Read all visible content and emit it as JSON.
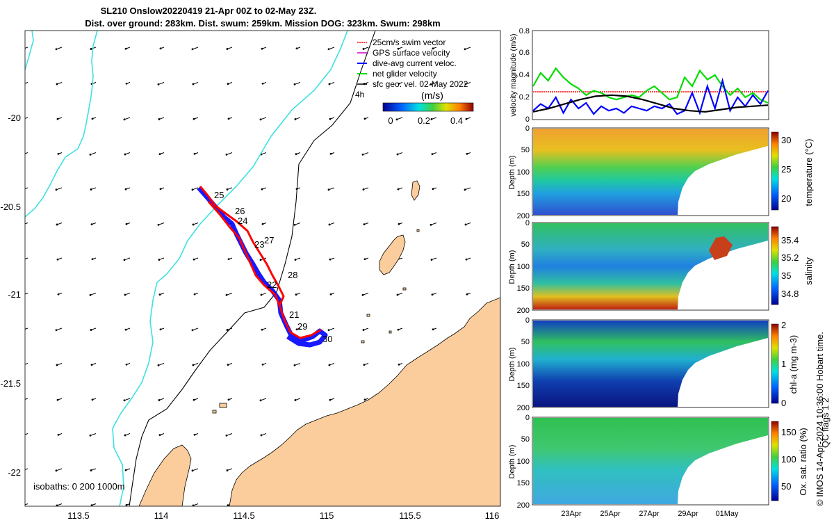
{
  "header": {
    "title_line1": "SL210 Onslow20220419 21-Apr 00Z to 02-May 23Z.",
    "title_line2": "Dist. over ground: 283km. Dist. swum: 259km. Mission DOG: 323km. Swum: 298km"
  },
  "map": {
    "lon_ticks": [
      "113.5",
      "114",
      "114.5",
      "115",
      "115.5",
      "116"
    ],
    "lat_ticks": [
      "-20",
      "-20.5",
      "-21",
      "-21.5",
      "-22"
    ],
    "isobaths_label": "isobaths: 0   200  1000m",
    "legend": [
      {
        "label": "25cm/s swim vector",
        "color": "#ff0000"
      },
      {
        "label": "GPS surface velocity",
        "color": "#cc00cc"
      },
      {
        "label": "dive-avg current veloc.",
        "color": "#0000ff"
      },
      {
        "label": "net glider velocity",
        "color": "#00dd00"
      },
      {
        "label": "sfc geo. vel. 02-May 2022",
        "color": "#000000"
      }
    ],
    "legend_extra": "4h",
    "colorbar_title": "(m/s)",
    "colorbar_ticks": [
      "0",
      "0.2",
      "0.4"
    ],
    "day_labels": [
      "25",
      "26",
      "24",
      "27",
      "23",
      "28",
      "22",
      "21",
      "29",
      "30"
    ],
    "colors": {
      "land": "#fbcd9c",
      "coast_200": "#3ee0e0",
      "isobath_1000": "#000000",
      "track": "#ff0000",
      "current": "#0000ff"
    }
  },
  "chart_data": [
    {
      "type": "line",
      "panel": "velocity",
      "ylabel": "velocity magnitude (m/s)",
      "ylim": [
        0,
        0.8
      ],
      "yticks": [
        "0",
        "0.2",
        "0.4",
        "0.6",
        "0.8"
      ],
      "series": [
        {
          "name": "25cm/s swim vector",
          "color": "#ff0000",
          "values": [
            0.25,
            0.25
          ]
        },
        {
          "name": "net glider velocity",
          "color": "#00dd00",
          "values": [
            0.3,
            0.42,
            0.35,
            0.46,
            0.38,
            0.32,
            0.28,
            0.22,
            0.26,
            0.24,
            0.2,
            0.18,
            0.2,
            0.22,
            0.2,
            0.26,
            0.3,
            0.24,
            0.18,
            0.2,
            0.38,
            0.3,
            0.44,
            0.36,
            0.4,
            0.3,
            0.22,
            0.28,
            0.2,
            0.24,
            0.18,
            0.15
          ]
        },
        {
          "name": "dive-avg current veloc.",
          "color": "#0000ff",
          "values": [
            0.08,
            0.14,
            0.1,
            0.2,
            0.06,
            0.18,
            0.1,
            0.15,
            0.05,
            0.12,
            0.08,
            0.1,
            0.06,
            0.12,
            0.1,
            0.08,
            0.12,
            0.1,
            0.14,
            0.05,
            0.08,
            0.24,
            0.06,
            0.3,
            0.1,
            0.35,
            0.08,
            0.2,
            0.12,
            0.22,
            0.14,
            0.26
          ]
        },
        {
          "name": "sfc geo. vel.",
          "color": "#000000",
          "values": [
            0.07,
            0.1,
            0.14,
            0.18,
            0.21,
            0.22,
            0.21,
            0.18,
            0.14,
            0.1,
            0.08,
            0.07,
            0.09,
            0.11,
            0.12,
            0.13
          ]
        }
      ]
    },
    {
      "type": "heatmap",
      "panel": "temperature",
      "ylabel": "Depth (m)",
      "clabel": "temperature (°C)",
      "yticks": [
        "0",
        "50",
        "100",
        "150",
        "200"
      ],
      "cticks": [
        "30",
        "25",
        "20"
      ]
    },
    {
      "type": "heatmap",
      "panel": "salinity",
      "ylabel": "Depth (m)",
      "clabel": "salinity",
      "yticks": [
        "0",
        "50",
        "100",
        "150",
        "200"
      ],
      "cticks": [
        "35.4",
        "35.2",
        "35",
        "34.8"
      ]
    },
    {
      "type": "heatmap",
      "panel": "chl-a",
      "ylabel": "Depth (m)",
      "clabel": "chl-a (mg m-3)",
      "yticks": [
        "0",
        "50",
        "100",
        "150",
        "200"
      ],
      "cticks": [
        "2",
        "1",
        "0"
      ]
    },
    {
      "type": "heatmap",
      "panel": "oxygen",
      "ylabel": "Depth (m)",
      "clabel": "Ox. sat. ratio (%)",
      "yticks": [
        "0",
        "50",
        "100",
        "150",
        "200"
      ],
      "cticks": [
        "150",
        "100",
        "50"
      ],
      "xticks": [
        "23Apr",
        "25Apr",
        "27Apr",
        "29Apr",
        "01May"
      ]
    }
  ],
  "footer": {
    "qc_label": "QC flags 1  2",
    "credit": "© IMOS 14-Apr-2024 10:36:00 Hobart time."
  }
}
